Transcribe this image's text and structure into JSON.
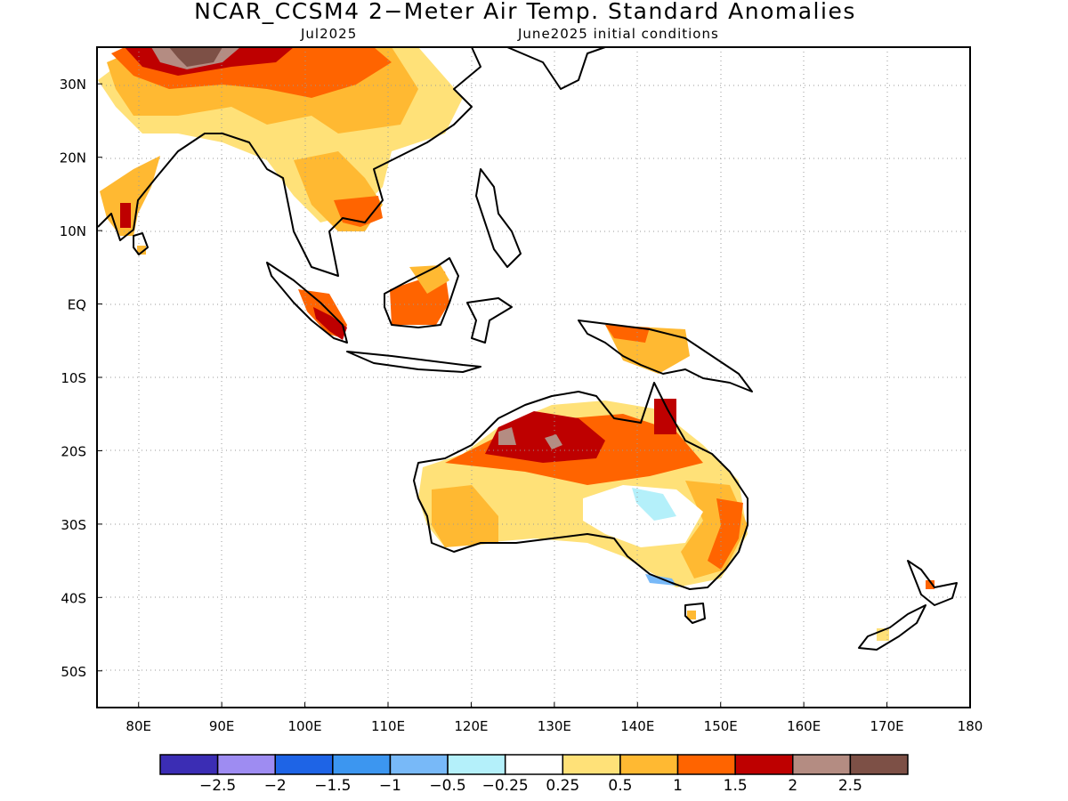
{
  "title": "NCAR_CCSM4 2−Meter Air Temp. Standard Anomalies",
  "subtitle_left": "Jul2025",
  "subtitle_right": "June2025 initial conditions",
  "map": {
    "lon_range": [
      75,
      180
    ],
    "lat_range": [
      -55,
      35
    ],
    "lon_ticks": [
      {
        "value": 80,
        "label": "80E"
      },
      {
        "value": 90,
        "label": "90E"
      },
      {
        "value": 100,
        "label": "100E"
      },
      {
        "value": 110,
        "label": "110E"
      },
      {
        "value": 120,
        "label": "120E"
      },
      {
        "value": 130,
        "label": "130E"
      },
      {
        "value": 140,
        "label": "140E"
      },
      {
        "value": 150,
        "label": "150E"
      },
      {
        "value": 160,
        "label": "160E"
      },
      {
        "value": 170,
        "label": "170E"
      },
      {
        "value": 180,
        "label": "180"
      }
    ],
    "lat_ticks": [
      {
        "value": 30,
        "label": "30N"
      },
      {
        "value": 20,
        "label": "20N"
      },
      {
        "value": 10,
        "label": "10N"
      },
      {
        "value": 0,
        "label": "EQ"
      },
      {
        "value": -10,
        "label": "10S"
      },
      {
        "value": -20,
        "label": "20S"
      },
      {
        "value": -30,
        "label": "30S"
      },
      {
        "value": -40,
        "label": "40S"
      },
      {
        "value": -50,
        "label": "50S"
      }
    ],
    "grid": "dotted"
  },
  "colorbar": {
    "colors": [
      "#3b2db4",
      "#9e8cf2",
      "#1e64e6",
      "#3c96f0",
      "#78b9f8",
      "#b4f0fa",
      "#ffffff",
      "#ffe178",
      "#ffb932",
      "#ff6400",
      "#be0000",
      "#b48c82",
      "#7d5046"
    ],
    "labels": [
      "−2.5",
      "−2",
      "−1.5",
      "−1",
      "−0.5",
      "−0.25",
      "0.25",
      "0.5",
      "1",
      "1.5",
      "2",
      "2.5"
    ]
  }
}
